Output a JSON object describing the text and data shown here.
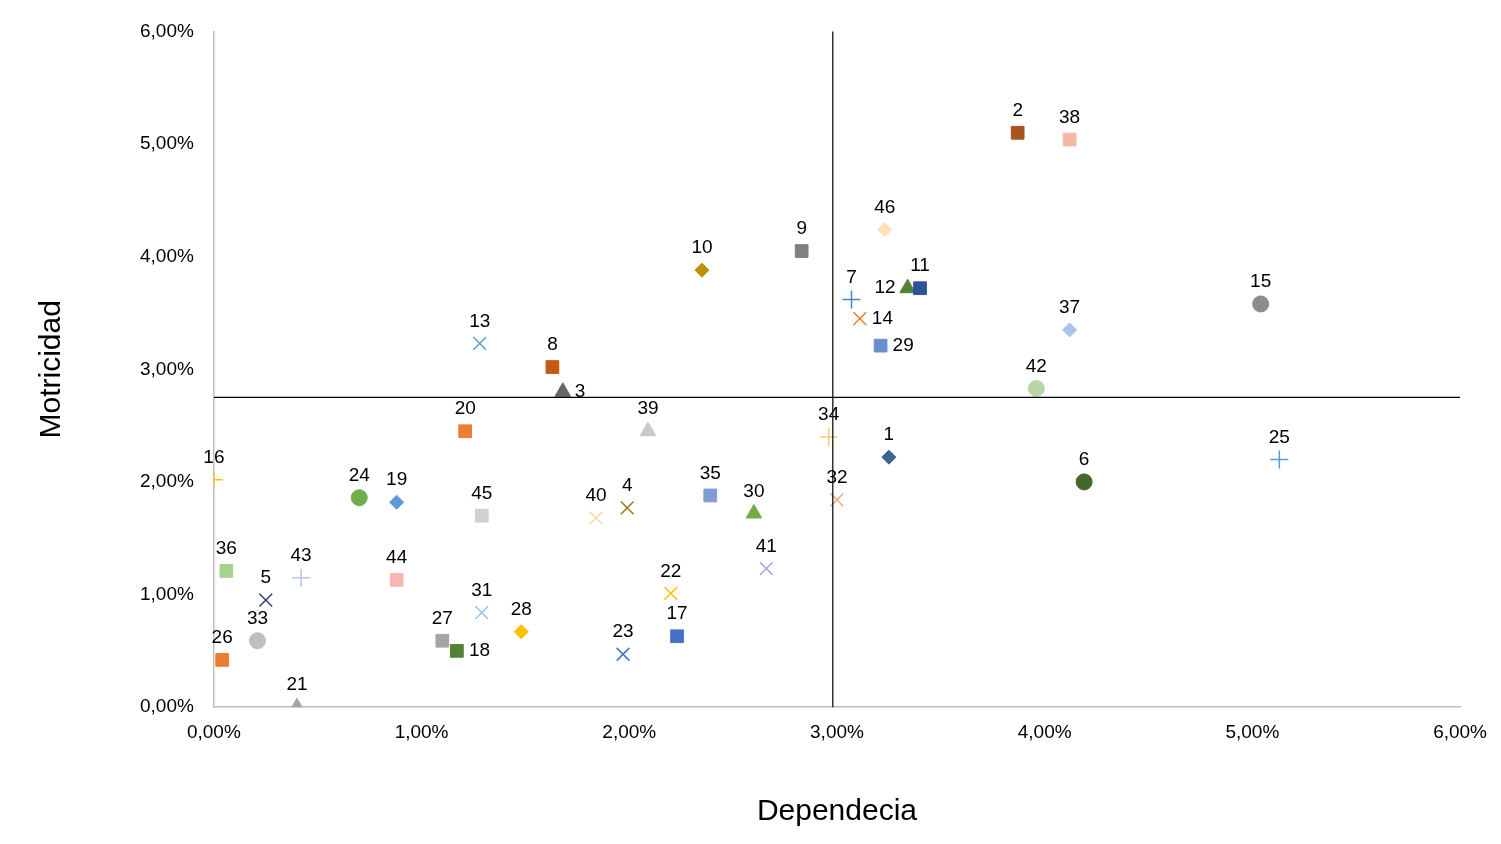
{
  "chart_data": {
    "type": "scatter",
    "xlabel": "Dependecia",
    "ylabel": "Motricidad",
    "xlim": [
      0,
      6
    ],
    "ylim": [
      0,
      6
    ],
    "xticks": [
      {
        "value": 0,
        "label": "0,00%"
      },
      {
        "value": 1,
        "label": "1,00%"
      },
      {
        "value": 2,
        "label": "2,00%"
      },
      {
        "value": 3,
        "label": "3,00%"
      },
      {
        "value": 4,
        "label": "4,00%"
      },
      {
        "value": 5,
        "label": "5,00%"
      },
      {
        "value": 6,
        "label": "6,00%"
      }
    ],
    "yticks": [
      {
        "value": 0,
        "label": "0,00%"
      },
      {
        "value": 1,
        "label": "1,00%"
      },
      {
        "value": 2,
        "label": "2,00%"
      },
      {
        "value": 3,
        "label": "3,00%"
      },
      {
        "value": 4,
        "label": "4,00%"
      },
      {
        "value": 5,
        "label": "5,00%"
      },
      {
        "value": 6,
        "label": "6,00%"
      }
    ],
    "grid": false,
    "ref_lines": [
      {
        "axis": "x",
        "value": 2.98,
        "color": "#000000"
      },
      {
        "axis": "y",
        "value": 2.75,
        "color": "#000000"
      }
    ],
    "series": [
      {
        "name": "1",
        "color": "#3a6595",
        "marker": "diamond",
        "x": [
          3.25
        ],
        "values": [
          2.22
        ]
      },
      {
        "name": "2",
        "color": "#a9531f",
        "marker": "square",
        "x": [
          3.87
        ],
        "values": [
          5.1
        ]
      },
      {
        "name": "3",
        "color": "#666666",
        "marker": "triangle",
        "x": [
          1.68
        ],
        "values": [
          2.8
        ]
      },
      {
        "name": "4",
        "color": "#9c7a14",
        "marker": "cross",
        "x": [
          1.99
        ],
        "values": [
          1.77
        ]
      },
      {
        "name": "5",
        "color": "#264478",
        "marker": "cross",
        "x": [
          0.25
        ],
        "values": [
          0.95
        ]
      },
      {
        "name": "6",
        "color": "#43682b",
        "marker": "circle",
        "x": [
          4.19
        ],
        "values": [
          2.0
        ]
      },
      {
        "name": "7",
        "color": "#4a86c5",
        "marker": "plus",
        "x": [
          3.07
        ],
        "values": [
          3.62
        ]
      },
      {
        "name": "8",
        "color": "#c55a11",
        "marker": "square",
        "x": [
          1.63
        ],
        "values": [
          3.02
        ]
      },
      {
        "name": "9",
        "color": "#7f7f7f",
        "marker": "square",
        "x": [
          2.83
        ],
        "values": [
          4.05
        ]
      },
      {
        "name": "10",
        "color": "#bf9000",
        "marker": "diamond",
        "x": [
          2.35
        ],
        "values": [
          3.88
        ]
      },
      {
        "name": "11",
        "color": "#2f5597",
        "marker": "square",
        "x": [
          3.4
        ],
        "values": [
          3.72
        ]
      },
      {
        "name": "12",
        "color": "#548235",
        "marker": "triangle",
        "x": [
          3.34
        ],
        "values": [
          3.72
        ]
      },
      {
        "name": "13",
        "color": "#5b9bd5",
        "marker": "cross",
        "x": [
          1.28
        ],
        "values": [
          3.23
        ]
      },
      {
        "name": "14",
        "color": "#ed7d31",
        "marker": "cross",
        "x": [
          3.11
        ],
        "values": [
          3.45
        ]
      },
      {
        "name": "15",
        "color": "#8c8c8c",
        "marker": "circle",
        "x": [
          5.04
        ],
        "values": [
          3.58
        ]
      },
      {
        "name": "16",
        "color": "#ffc000",
        "marker": "plus",
        "x": [
          0.0
        ],
        "values": [
          2.02
        ]
      },
      {
        "name": "17",
        "color": "#4472c4",
        "marker": "square",
        "x": [
          2.23
        ],
        "values": [
          0.63
        ]
      },
      {
        "name": "18",
        "color": "#548235",
        "marker": "square",
        "x": [
          1.17
        ],
        "values": [
          0.5
        ]
      },
      {
        "name": "19",
        "color": "#5b9bd5",
        "marker": "diamond",
        "x": [
          0.88
        ],
        "values": [
          1.82
        ]
      },
      {
        "name": "20",
        "color": "#ed7d31",
        "marker": "square",
        "x": [
          1.21
        ],
        "values": [
          2.45
        ]
      },
      {
        "name": "21",
        "color": "#a5a5a5",
        "marker": "triangle",
        "x": [
          0.4
        ],
        "values": [
          0.0
        ]
      },
      {
        "name": "22",
        "color": "#ffc000",
        "marker": "cross",
        "x": [
          2.2
        ],
        "values": [
          1.01
        ]
      },
      {
        "name": "23",
        "color": "#4472c4",
        "marker": "cross",
        "x": [
          1.97
        ],
        "values": [
          0.47
        ]
      },
      {
        "name": "24",
        "color": "#70ad47",
        "marker": "circle",
        "x": [
          0.7
        ],
        "values": [
          1.86
        ]
      },
      {
        "name": "25",
        "color": "#5b9bd5",
        "marker": "plus",
        "x": [
          5.13
        ],
        "values": [
          2.2
        ]
      },
      {
        "name": "26",
        "color": "#ed7d31",
        "marker": "square",
        "x": [
          0.04
        ],
        "values": [
          0.42
        ]
      },
      {
        "name": "27",
        "color": "#a5a5a5",
        "marker": "square",
        "x": [
          1.1
        ],
        "values": [
          0.59
        ]
      },
      {
        "name": "28",
        "color": "#ffc000",
        "marker": "diamond",
        "x": [
          1.48
        ],
        "values": [
          0.67
        ]
      },
      {
        "name": "29",
        "color": "#698ed0",
        "marker": "square",
        "x": [
          3.21
        ],
        "values": [
          3.21
        ]
      },
      {
        "name": "30",
        "color": "#70ad47",
        "marker": "triangle",
        "x": [
          2.6
        ],
        "values": [
          1.72
        ]
      },
      {
        "name": "31",
        "color": "#9dc3e6",
        "marker": "cross",
        "x": [
          1.29
        ],
        "values": [
          0.84
        ]
      },
      {
        "name": "32",
        "color": "#f4a582",
        "marker": "cross",
        "x": [
          3.0
        ],
        "values": [
          1.84
        ]
      },
      {
        "name": "33",
        "color": "#bfbfbf",
        "marker": "circle",
        "x": [
          0.21
        ],
        "values": [
          0.59
        ]
      },
      {
        "name": "34",
        "color": "#f8cb74",
        "marker": "plus",
        "x": [
          2.96
        ],
        "values": [
          2.4
        ]
      },
      {
        "name": "35",
        "color": "#7f9bd6",
        "marker": "square",
        "x": [
          2.39
        ],
        "values": [
          1.88
        ]
      },
      {
        "name": "36",
        "color": "#a9d18e",
        "marker": "square",
        "x": [
          0.06
        ],
        "values": [
          1.21
        ]
      },
      {
        "name": "37",
        "color": "#a9c4e8",
        "marker": "diamond",
        "x": [
          4.12
        ],
        "values": [
          3.35
        ]
      },
      {
        "name": "38",
        "color": "#f4b9a5",
        "marker": "square",
        "x": [
          4.12
        ],
        "values": [
          5.04
        ]
      },
      {
        "name": "39",
        "color": "#c9c9c9",
        "marker": "triangle",
        "x": [
          2.09
        ],
        "values": [
          2.45
        ]
      },
      {
        "name": "40",
        "color": "#ffd9a8",
        "marker": "cross",
        "x": [
          1.84
        ],
        "values": [
          1.68
        ]
      },
      {
        "name": "41",
        "color": "#9aa7d8",
        "marker": "cross",
        "x": [
          2.66
        ],
        "values": [
          1.23
        ]
      },
      {
        "name": "42",
        "color": "#b7d7a8",
        "marker": "circle",
        "x": [
          3.96
        ],
        "values": [
          2.83
        ]
      },
      {
        "name": "43",
        "color": "#b4c7e7",
        "marker": "plus",
        "x": [
          0.42
        ],
        "values": [
          1.15
        ]
      },
      {
        "name": "44",
        "color": "#f8b6b0",
        "marker": "square",
        "x": [
          0.88
        ],
        "values": [
          1.13
        ]
      },
      {
        "name": "45",
        "color": "#d0d0d0",
        "marker": "square",
        "x": [
          1.29
        ],
        "values": [
          1.7
        ]
      },
      {
        "name": "46",
        "color": "#ffe0b3",
        "marker": "diamond",
        "x": [
          3.23
        ],
        "values": [
          4.24
        ]
      }
    ]
  }
}
